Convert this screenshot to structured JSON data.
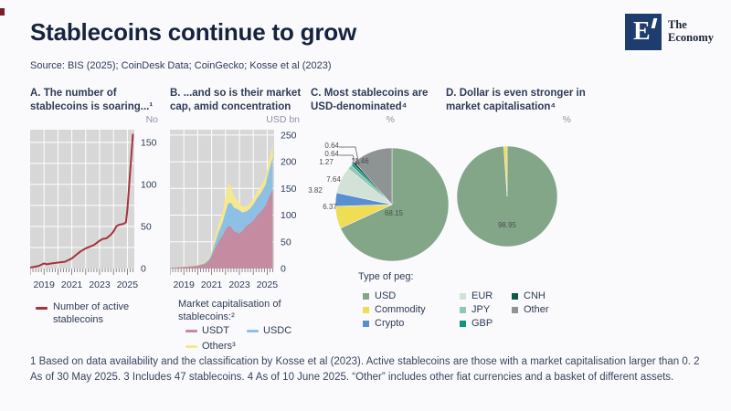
{
  "header": {
    "title": "Stablecoins continue to grow",
    "source": "Source:  BIS (2025); CoinDesk Data; CoinGecko; Kosse et al (2023)",
    "logo": {
      "mark": "E",
      "name_line1": "The",
      "name_line2": "Economy"
    }
  },
  "colors": {
    "peg": {
      "USD": "#83a689",
      "Commodity": "#eedd55",
      "Crypto": "#5a8ed2",
      "EUR": "#d2e2d6",
      "JPY": "#90c8b4",
      "GBP": "#13947f",
      "CNH": "#0c5c45",
      "Other": "#8e9394"
    },
    "series": {
      "line": "#a6343c",
      "USDT": "#c58ba0",
      "USDC": "#8ec0e6",
      "Others": "#f5e88f"
    },
    "plot_bg": "#d7d7d7",
    "grid": "#ffffff",
    "axis_text": "#2e3b55"
  },
  "legends": {
    "panelA": {
      "label": "Number of active stablecoins"
    },
    "panelB": {
      "title": "Market capitalisation of stablecoins:²",
      "items": [
        {
          "label": "USDT"
        },
        {
          "label": "USDC"
        },
        {
          "label": "Others³"
        }
      ]
    },
    "peg": {
      "title": "Type of peg:",
      "items": [
        {
          "label": "USD"
        },
        {
          "label": "Commodity"
        },
        {
          "label": "Crypto"
        },
        {
          "label": "EUR"
        },
        {
          "label": "JPY"
        },
        {
          "label": "GBP"
        },
        {
          "label": "CNH"
        },
        {
          "label": "Other"
        }
      ]
    }
  },
  "footnote": "1 Based on data availability and the classification by Kosse et al (2023). Active stablecoins are those with a market capitalisation larger than 0. 2 As of 30 May 2025. 3 Includes 47 stablecoins. 4 As of 10 June 2025. “Other” includes other fiat currencies and a basket of different assets.",
  "chart_data": [
    {
      "id": "panelA",
      "type": "line",
      "title": "A. The number of stablecoins is soaring...¹",
      "unit": "No",
      "x_range": [
        2018,
        2025.5
      ],
      "y_range": [
        0,
        165
      ],
      "x_ticks": [
        2019,
        2021,
        2023,
        2025
      ],
      "y_ticks": [
        0,
        50,
        100,
        150
      ],
      "grid": "on",
      "grid_step": 25,
      "series": [
        {
          "name": "Number of active stablecoins",
          "x": [
            2018,
            2018.3,
            2018.6,
            2019,
            2019.2,
            2019.5,
            2020,
            2020.5,
            2021,
            2021.3,
            2021.6,
            2022,
            2022.3,
            2022.6,
            2023,
            2023.2,
            2023.5,
            2023.8,
            2024,
            2024.2,
            2024.4,
            2024.7,
            2024.9,
            2025,
            2025.2,
            2025.4
          ],
          "y": [
            1,
            2,
            3,
            6,
            5,
            6,
            7,
            8,
            12,
            16,
            20,
            24,
            26,
            28,
            33,
            35,
            36,
            40,
            44,
            50,
            52,
            53,
            55,
            70,
            115,
            160
          ]
        }
      ]
    },
    {
      "id": "panelB",
      "type": "area",
      "title": "B. ...and so is their market cap, amid concentration",
      "unit": "USD bn",
      "x_range": [
        2018,
        2025.5
      ],
      "y_range": [
        0,
        260
      ],
      "x_ticks": [
        2019,
        2021,
        2023,
        2025
      ],
      "y_ticks": [
        0,
        50,
        100,
        150,
        200,
        250
      ],
      "grid": "on",
      "grid_step": 50,
      "x": [
        2018,
        2018.5,
        2019,
        2019.5,
        2020,
        2020.5,
        2020.8,
        2021,
        2021.2,
        2021.5,
        2021.8,
        2022,
        2022.2,
        2022.4,
        2022.6,
        2022.8,
        2023,
        2023.2,
        2023.5,
        2023.8,
        2024,
        2024.3,
        2024.6,
        2024.9,
        2025,
        2025.2,
        2025.4
      ],
      "series": [
        {
          "name": "USDT",
          "values": [
            1,
            2,
            3,
            4,
            5,
            8,
            14,
            22,
            35,
            50,
            62,
            72,
            80,
            78,
            70,
            68,
            66,
            70,
            80,
            85,
            90,
            100,
            108,
            118,
            125,
            138,
            148
          ]
        },
        {
          "name": "USDC",
          "values": [
            0,
            0,
            0,
            0,
            1,
            2,
            3,
            5,
            10,
            18,
            25,
            34,
            42,
            45,
            44,
            44,
            43,
            35,
            27,
            28,
            30,
            33,
            35,
            40,
            45,
            52,
            60
          ]
        },
        {
          "name": "Others",
          "values": [
            0,
            0,
            1,
            1,
            1,
            2,
            3,
            5,
            10,
            15,
            20,
            28,
            38,
            30,
            22,
            18,
            14,
            12,
            9,
            10,
            11,
            12,
            13,
            15,
            17,
            20,
            24
          ]
        }
      ],
      "stacked": true
    },
    {
      "id": "panelC",
      "type": "pie",
      "title": "C. Most stablecoins are USD-denominated⁴",
      "unit": "%",
      "labels": [
        "USD",
        "Commodity",
        "Crypto",
        "EUR",
        "JPY",
        "GBP",
        "CNH",
        "Other"
      ],
      "values": [
        68.15,
        6.37,
        3.82,
        7.64,
        1.27,
        0.64,
        0.64,
        11.46
      ],
      "value_labels": [
        "68.15",
        "6.37",
        "3.82",
        "7.64",
        "1.27",
        "0.64",
        "0.64",
        "11.46"
      ]
    },
    {
      "id": "panelD",
      "type": "pie",
      "title": "D. Dollar is even stronger in market capitalisation⁴",
      "unit": "%",
      "labels": [
        "USD",
        "Commodity"
      ],
      "values": [
        98.95,
        1.05
      ],
      "value_labels": [
        "98.95"
      ]
    }
  ]
}
